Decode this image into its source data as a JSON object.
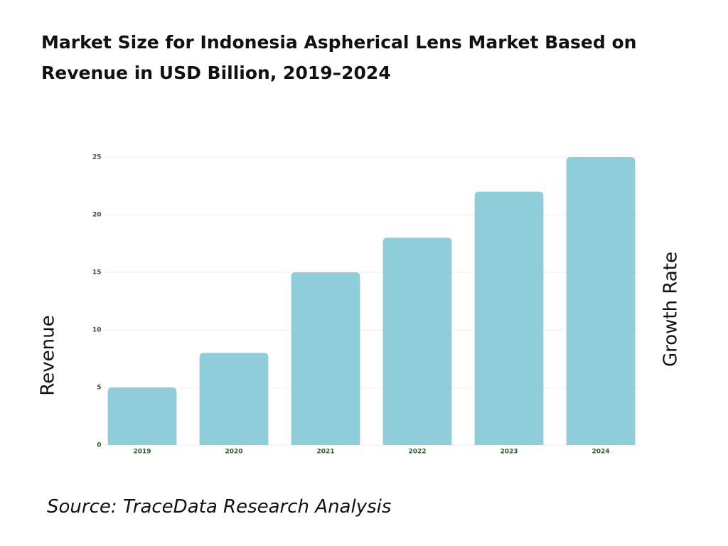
{
  "chart_data": {
    "type": "bar",
    "title": "Market Size for Indonesia Aspherical Lens Market Based on Revenue in USD Billion, 2019–2024",
    "ylabel": "Revenue",
    "y2label": "Growth Rate",
    "source": "Source: TraceData Research Analysis",
    "categories": [
      "2019",
      "2020",
      "2021",
      "2022",
      "2023",
      "2024"
    ],
    "values": [
      5,
      8,
      15,
      18,
      22,
      25
    ],
    "color": "#8ecdd9",
    "ylim": [
      0,
      25
    ],
    "yticks": [
      0,
      5,
      10,
      15,
      20,
      25
    ],
    "grid": true
  }
}
